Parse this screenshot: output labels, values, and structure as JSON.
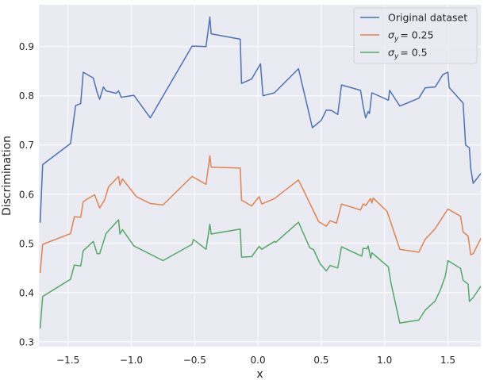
{
  "chart_data": {
    "type": "line",
    "title": "",
    "xlabel": "x",
    "ylabel": "Discrimination",
    "xlim": [
      -1.73,
      1.76
    ],
    "ylim": [
      0.29,
      0.985
    ],
    "xticks": [
      -1.5,
      -1.0,
      -0.5,
      0.0,
      0.5,
      1.0,
      1.5
    ],
    "xtick_labels": [
      "−1.5",
      "−1.0",
      "−0.5",
      "0.0",
      "0.5",
      "1.0",
      "1.5"
    ],
    "yticks": [
      0.3,
      0.4,
      0.5,
      0.6,
      0.7,
      0.8,
      0.9
    ],
    "ytick_labels": [
      "0.3",
      "0.4",
      "0.5",
      "0.6",
      "0.7",
      "0.8",
      "0.9"
    ],
    "grid": true,
    "background": "#eaeaf2",
    "legend_position": "top-right",
    "series": [
      {
        "name": "Original dataset",
        "legend_label": "Original dataset",
        "color": "#4c72b0",
        "points": [
          [
            -1.72,
            0.542
          ],
          [
            -1.7,
            0.66
          ],
          [
            -1.48,
            0.703
          ],
          [
            -1.44,
            0.78
          ],
          [
            -1.4,
            0.784
          ],
          [
            -1.38,
            0.848
          ],
          [
            -1.3,
            0.836
          ],
          [
            -1.27,
            0.807
          ],
          [
            -1.25,
            0.793
          ],
          [
            -1.22,
            0.818
          ],
          [
            -1.2,
            0.81
          ],
          [
            -1.12,
            0.805
          ],
          [
            -1.1,
            0.81
          ],
          [
            -1.08,
            0.797
          ],
          [
            -0.98,
            0.801
          ],
          [
            -0.85,
            0.755
          ],
          [
            -0.52,
            0.901
          ],
          [
            -0.41,
            0.9
          ],
          [
            -0.38,
            0.96
          ],
          [
            -0.37,
            0.926
          ],
          [
            -0.14,
            0.915
          ],
          [
            -0.13,
            0.825
          ],
          [
            -0.05,
            0.834
          ],
          [
            0.02,
            0.865
          ],
          [
            0.04,
            0.8
          ],
          [
            0.13,
            0.806
          ],
          [
            0.32,
            0.855
          ],
          [
            0.43,
            0.735
          ],
          [
            0.5,
            0.75
          ],
          [
            0.54,
            0.771
          ],
          [
            0.58,
            0.77
          ],
          [
            0.63,
            0.762
          ],
          [
            0.66,
            0.822
          ],
          [
            0.81,
            0.811
          ],
          [
            0.83,
            0.78
          ],
          [
            0.85,
            0.755
          ],
          [
            0.87,
            0.768
          ],
          [
            0.88,
            0.764
          ],
          [
            0.9,
            0.806
          ],
          [
            1.03,
            0.791
          ],
          [
            1.04,
            0.811
          ],
          [
            1.12,
            0.779
          ],
          [
            1.27,
            0.795
          ],
          [
            1.32,
            0.816
          ],
          [
            1.4,
            0.818
          ],
          [
            1.46,
            0.843
          ],
          [
            1.5,
            0.848
          ],
          [
            1.51,
            0.817
          ],
          [
            1.62,
            0.785
          ],
          [
            1.64,
            0.7
          ],
          [
            1.67,
            0.694
          ],
          [
            1.68,
            0.653
          ],
          [
            1.7,
            0.622
          ],
          [
            1.76,
            0.642
          ]
        ]
      },
      {
        "name": "sigma_y = 0.25",
        "legend_label": "= 0.25",
        "color": "#dd8452",
        "points": [
          [
            -1.72,
            0.44
          ],
          [
            -1.7,
            0.498
          ],
          [
            -1.48,
            0.52
          ],
          [
            -1.45,
            0.554
          ],
          [
            -1.4,
            0.553
          ],
          [
            -1.38,
            0.585
          ],
          [
            -1.29,
            0.599
          ],
          [
            -1.25,
            0.572
          ],
          [
            -1.21,
            0.589
          ],
          [
            -1.18,
            0.615
          ],
          [
            -1.1,
            0.636
          ],
          [
            -1.09,
            0.618
          ],
          [
            -1.07,
            0.631
          ],
          [
            -0.96,
            0.595
          ],
          [
            -0.85,
            0.581
          ],
          [
            -0.75,
            0.578
          ],
          [
            -0.52,
            0.636
          ],
          [
            -0.41,
            0.62
          ],
          [
            -0.38,
            0.678
          ],
          [
            -0.37,
            0.655
          ],
          [
            -0.14,
            0.653
          ],
          [
            -0.13,
            0.588
          ],
          [
            -0.05,
            0.576
          ],
          [
            0.01,
            0.595
          ],
          [
            0.03,
            0.58
          ],
          [
            0.13,
            0.591
          ],
          [
            0.32,
            0.629
          ],
          [
            0.48,
            0.544
          ],
          [
            0.54,
            0.535
          ],
          [
            0.57,
            0.546
          ],
          [
            0.62,
            0.541
          ],
          [
            0.66,
            0.58
          ],
          [
            0.81,
            0.568
          ],
          [
            0.83,
            0.58
          ],
          [
            0.85,
            0.577
          ],
          [
            0.89,
            0.591
          ],
          [
            0.9,
            0.582
          ],
          [
            0.91,
            0.592
          ],
          [
            1.02,
            0.565
          ],
          [
            1.12,
            0.488
          ],
          [
            1.27,
            0.482
          ],
          [
            1.32,
            0.508
          ],
          [
            1.4,
            0.53
          ],
          [
            1.5,
            0.57
          ],
          [
            1.6,
            0.555
          ],
          [
            1.62,
            0.523
          ],
          [
            1.66,
            0.515
          ],
          [
            1.68,
            0.477
          ],
          [
            1.7,
            0.479
          ],
          [
            1.76,
            0.51
          ]
        ]
      },
      {
        "name": "sigma_y = 0.5",
        "legend_label": "= 0.5",
        "color": "#55a868",
        "points": [
          [
            -1.72,
            0.327
          ],
          [
            -1.7,
            0.392
          ],
          [
            -1.48,
            0.427
          ],
          [
            -1.45,
            0.456
          ],
          [
            -1.4,
            0.454
          ],
          [
            -1.38,
            0.485
          ],
          [
            -1.3,
            0.504
          ],
          [
            -1.27,
            0.479
          ],
          [
            -1.25,
            0.479
          ],
          [
            -1.22,
            0.503
          ],
          [
            -1.2,
            0.52
          ],
          [
            -1.1,
            0.548
          ],
          [
            -1.09,
            0.519
          ],
          [
            -1.07,
            0.528
          ],
          [
            -0.98,
            0.495
          ],
          [
            -0.75,
            0.465
          ],
          [
            -0.52,
            0.498
          ],
          [
            -0.51,
            0.508
          ],
          [
            -0.41,
            0.488
          ],
          [
            -0.38,
            0.539
          ],
          [
            -0.37,
            0.519
          ],
          [
            -0.14,
            0.529
          ],
          [
            -0.13,
            0.472
          ],
          [
            -0.05,
            0.473
          ],
          [
            0.01,
            0.494
          ],
          [
            0.03,
            0.488
          ],
          [
            0.13,
            0.504
          ],
          [
            0.14,
            0.502
          ],
          [
            0.32,
            0.543
          ],
          [
            0.41,
            0.491
          ],
          [
            0.44,
            0.487
          ],
          [
            0.49,
            0.459
          ],
          [
            0.54,
            0.444
          ],
          [
            0.57,
            0.455
          ],
          [
            0.63,
            0.45
          ],
          [
            0.66,
            0.493
          ],
          [
            0.82,
            0.474
          ],
          [
            0.83,
            0.49
          ],
          [
            0.86,
            0.489
          ],
          [
            0.87,
            0.495
          ],
          [
            0.89,
            0.47
          ],
          [
            0.9,
            0.481
          ],
          [
            1.03,
            0.452
          ],
          [
            1.05,
            0.42
          ],
          [
            1.12,
            0.338
          ],
          [
            1.27,
            0.344
          ],
          [
            1.32,
            0.364
          ],
          [
            1.4,
            0.383
          ],
          [
            1.44,
            0.405
          ],
          [
            1.48,
            0.434
          ],
          [
            1.5,
            0.465
          ],
          [
            1.6,
            0.449
          ],
          [
            1.62,
            0.425
          ],
          [
            1.66,
            0.417
          ],
          [
            1.67,
            0.382
          ],
          [
            1.7,
            0.39
          ],
          [
            1.76,
            0.413
          ]
        ]
      }
    ]
  }
}
